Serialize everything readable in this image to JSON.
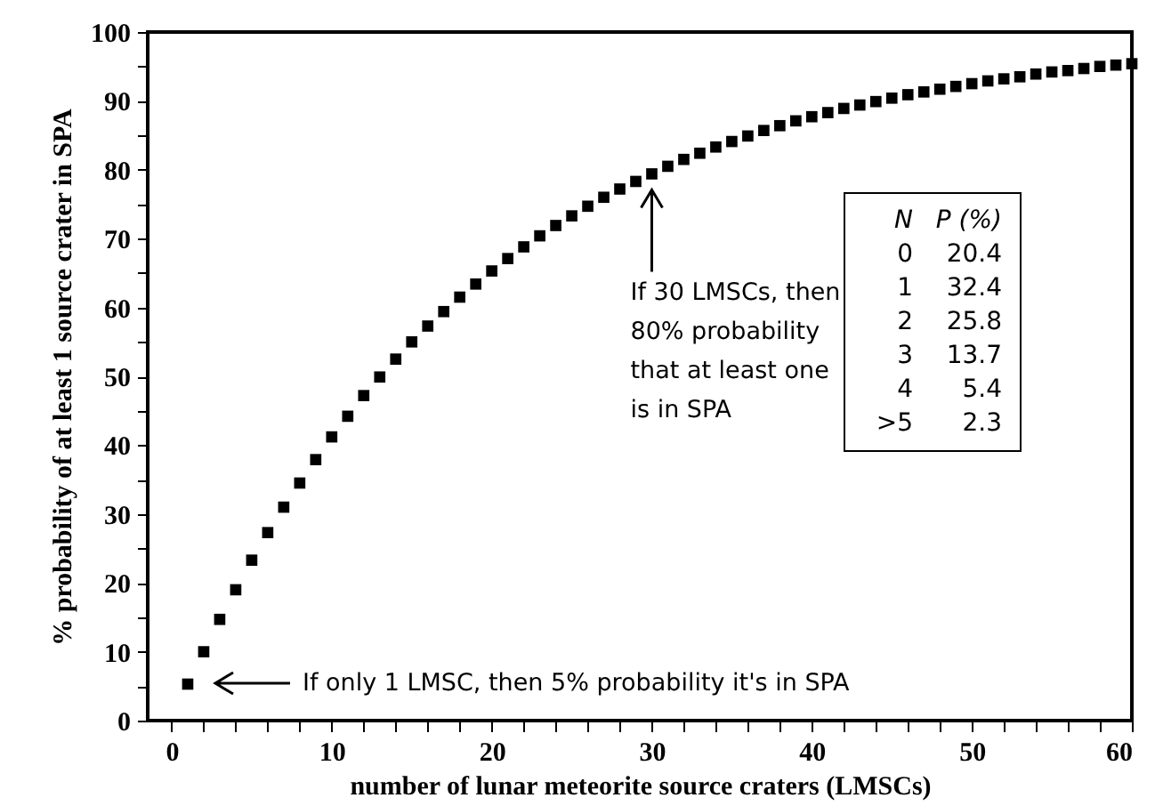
{
  "chart_data": {
    "type": "scatter",
    "xlabel": "number of lunar meteorite source craters (LMSCs)",
    "ylabel": "% probability of at least 1 source crater in SPA",
    "x": [
      1,
      2,
      3,
      4,
      5,
      6,
      7,
      8,
      9,
      10,
      11,
      12,
      13,
      14,
      15,
      16,
      17,
      18,
      19,
      20,
      21,
      22,
      23,
      24,
      25,
      26,
      27,
      28,
      29,
      30,
      31,
      32,
      33,
      34,
      35,
      36,
      37,
      38,
      39,
      40,
      41,
      42,
      43,
      44,
      45,
      46,
      47,
      48,
      49,
      50,
      51,
      52,
      53,
      54,
      55,
      56,
      57,
      58,
      59,
      60
    ],
    "series": [
      {
        "color": "#000000",
        "values": [
          5.3,
          10,
          14.7,
          19,
          23.3,
          27.3,
          31,
          34.5,
          37.9,
          41.2,
          44.2,
          47.2,
          49.9,
          52.5,
          55,
          57.3,
          59.4,
          61.5,
          63.4,
          65.3,
          67.1,
          68.8,
          70.4,
          71.9,
          73.3,
          74.7,
          76,
          77.2,
          78.3,
          79.4,
          80.5,
          81.5,
          82.4,
          83.3,
          84.1,
          84.9,
          85.7,
          86.4,
          87.1,
          87.7,
          88.3,
          88.9,
          89.4,
          89.9,
          90.4,
          90.9,
          91.3,
          91.7,
          92.1,
          92.5,
          92.9,
          93.2,
          93.5,
          93.9,
          94.2,
          94.4,
          94.7,
          95,
          95.2,
          95.4
        ]
      }
    ],
    "marker": "square",
    "xlim": [
      -1.5,
      60
    ],
    "ylim": [
      0,
      100
    ],
    "xticks": [
      0,
      {
        "value": 2,
        "label": null
      },
      {
        "value": 4,
        "label": null
      },
      {
        "value": 6,
        "label": null
      },
      {
        "value": 8,
        "label": null
      },
      10,
      {
        "value": 12,
        "label": null
      },
      {
        "value": 14,
        "label": null
      },
      {
        "value": 16,
        "label": null
      },
      {
        "value": 18,
        "label": null
      },
      20,
      {
        "value": 22,
        "label": null
      },
      {
        "value": 24,
        "label": null
      },
      {
        "value": 26,
        "label": null
      },
      {
        "value": 28,
        "label": null
      },
      30,
      {
        "value": 32,
        "label": null
      },
      {
        "value": 34,
        "label": null
      },
      {
        "value": 36,
        "label": null
      },
      {
        "value": 38,
        "label": null
      },
      40,
      {
        "value": 42,
        "label": null
      },
      {
        "value": 44,
        "label": null
      },
      {
        "value": 46,
        "label": null
      },
      {
        "value": 48,
        "label": null
      },
      50,
      {
        "value": 52,
        "label": null
      },
      {
        "value": 54,
        "label": null
      },
      {
        "value": 56,
        "label": null
      },
      {
        "value": 58,
        "label": null
      },
      60
    ],
    "yticks": [
      0,
      {
        "value": 5,
        "label": null
      },
      10,
      {
        "value": 15,
        "label": null
      },
      20,
      {
        "value": 25,
        "label": null
      },
      30,
      {
        "value": 35,
        "label": null
      },
      40,
      {
        "value": 45,
        "label": null
      },
      50,
      {
        "value": 55,
        "label": null
      },
      60,
      {
        "value": 65,
        "label": null
      },
      70,
      {
        "value": 75,
        "label": null
      },
      80,
      {
        "value": 85,
        "label": null
      },
      90,
      {
        "value": 95,
        "label": null
      },
      100
    ],
    "annotations": [
      "If only 1 LMSC, then 5% probability it's in SPA",
      {
        "text": "If 30 LMSCs, then\n80% probability\nthat at least one\nis in SPA",
        "x": 30,
        "y": 79.4
      },
      "N",
      "P (%)",
      "0",
      "20.4",
      "1",
      "32.4",
      "2",
      "25.8",
      "3",
      "13.7",
      "4",
      "5.4",
      ">5",
      "2.3"
    ]
  }
}
